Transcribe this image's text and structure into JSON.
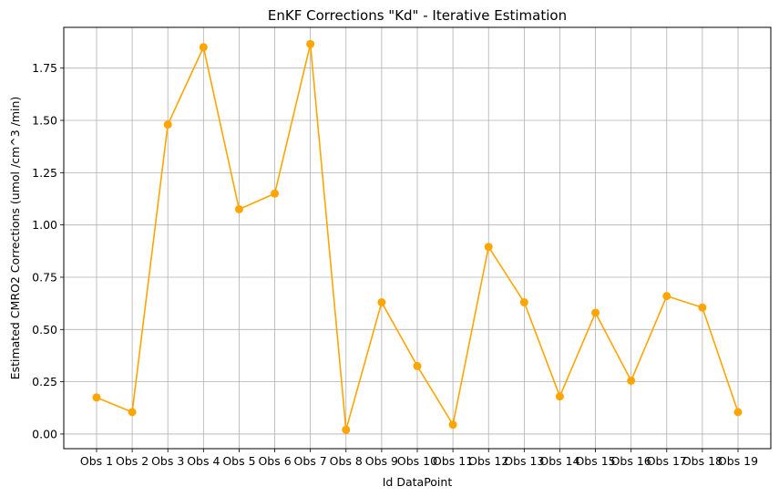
{
  "chart_data": {
    "type": "line",
    "title": "EnKF Corrections \"Kd\" - Iterative Estimation",
    "xlabel": "Id DataPoint",
    "ylabel": "Estimated CMRO2 Corrections (umol /cm^3 /min)",
    "categories": [
      "Obs 1",
      "Obs 2",
      "Obs 3",
      "Obs 4",
      "Obs 5",
      "Obs 6",
      "Obs 7",
      "Obs 8",
      "Obs 9",
      "Obs 10",
      "Obs 11",
      "Obs 12",
      "Obs 13",
      "Obs 14",
      "Obs 15",
      "Obs 16",
      "Obs 17",
      "Obs 18",
      "Obs 19"
    ],
    "series": [
      {
        "values": [
          0.175,
          0.105,
          1.48,
          1.85,
          1.075,
          1.15,
          1.865,
          0.02,
          0.63,
          0.325,
          0.045,
          0.895,
          0.63,
          0.18,
          0.58,
          0.255,
          0.66,
          0.605,
          0.105
        ],
        "color": "#ffa500",
        "marker": "circle"
      }
    ],
    "ylim": [
      -0.07,
      1.945
    ],
    "yticks": [
      0.0,
      0.25,
      0.5,
      0.75,
      1.0,
      1.25,
      1.5,
      1.75
    ],
    "ytick_labels": [
      "0.00",
      "0.25",
      "0.50",
      "0.75",
      "1.00",
      "1.25",
      "1.50",
      "1.75"
    ],
    "grid": true
  }
}
